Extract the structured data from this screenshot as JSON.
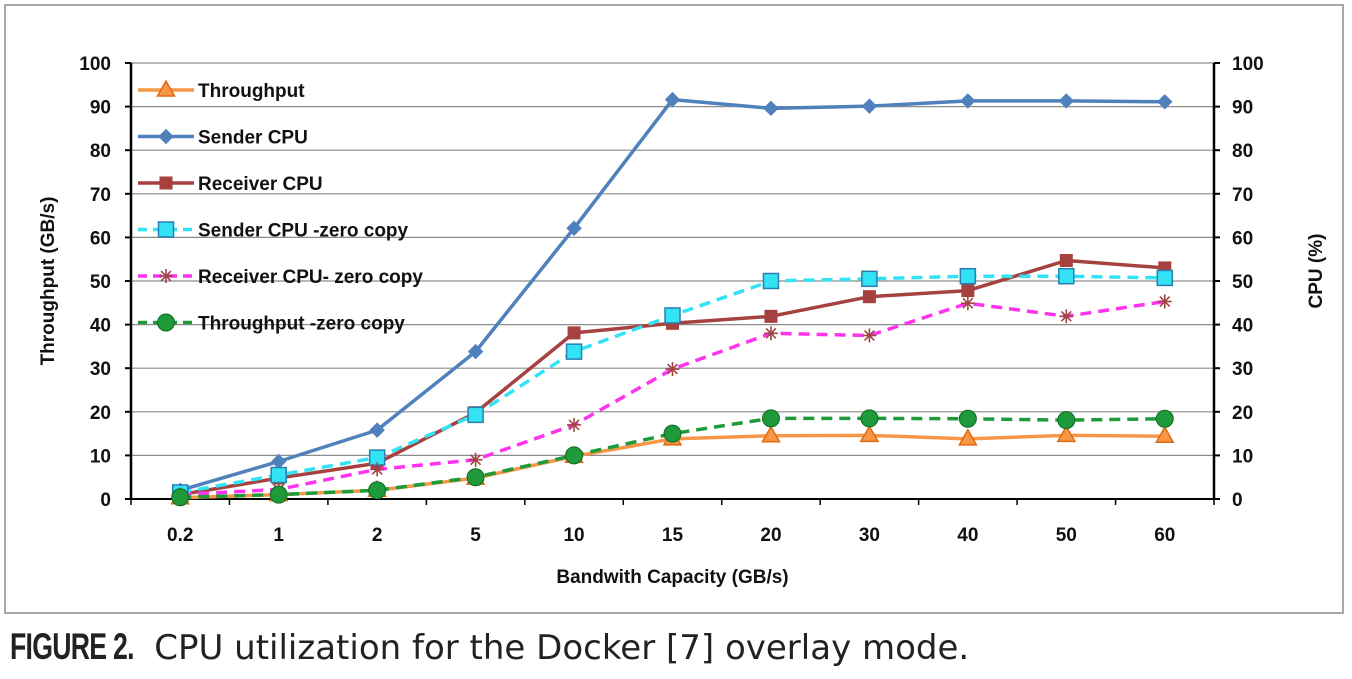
{
  "caption": {
    "figure_label": "FIGURE 2.",
    "text": "CPU utilization for the Docker [7] overlay mode."
  },
  "chart_data": {
    "type": "line",
    "categories": [
      "0.2",
      "1",
      "2",
      "5",
      "10",
      "15",
      "20",
      "30",
      "40",
      "50",
      "60"
    ],
    "xlabel": "Bandwith Capacity (GB/s)",
    "ylabel_left": "Throughput (GB/s)",
    "ylabel_right": "CPU (%)",
    "ylim": [
      0,
      100
    ],
    "yticks": [
      0,
      10,
      20,
      30,
      40,
      50,
      60,
      70,
      80,
      90,
      100
    ],
    "grid": true,
    "legend_position": "top-left",
    "series": [
      {
        "name": "Throughput",
        "color": "#f79646",
        "marker": "triangle",
        "dash": false,
        "values": [
          0.3,
          1,
          2,
          4.8,
          9.8,
          13.8,
          14.5,
          14.6,
          13.8,
          14.6,
          14.4
        ]
      },
      {
        "name": "Sender CPU",
        "color": "#4f81bd",
        "marker": "diamond",
        "dash": false,
        "values": [
          2,
          8.6,
          15.8,
          33.8,
          62.1,
          91.6,
          89.6,
          90.1,
          91.3,
          91.3,
          91.1
        ]
      },
      {
        "name": "Receiver CPU",
        "color": "#a5423f",
        "marker": "square",
        "dash": false,
        "values": [
          1,
          4.8,
          8.2,
          19.8,
          38.1,
          40.3,
          41.9,
          46.4,
          47.8,
          54.7,
          53
        ]
      },
      {
        "name": "Sender CPU -zero copy",
        "color": "#33e3f5",
        "marker": "square-open",
        "dash": true,
        "values": [
          1.5,
          5.5,
          9.5,
          19.3,
          33.8,
          42.1,
          50,
          50.5,
          51.1,
          51.1,
          50.7
        ]
      },
      {
        "name": "Receiver CPU- zero copy",
        "color": "#ff33ee",
        "marker": "star",
        "dash": true,
        "values": [
          1,
          2.2,
          6.8,
          9,
          17,
          29.8,
          38,
          37.5,
          44.9,
          41.9,
          45.3
        ]
      },
      {
        "name": "Throughput -zero copy",
        "color": "#1e9a3a",
        "marker": "circle",
        "dash": true,
        "values": [
          0.4,
          1,
          2,
          5,
          10,
          15,
          18.5,
          18.5,
          18.4,
          18.1,
          18.4
        ]
      }
    ]
  }
}
